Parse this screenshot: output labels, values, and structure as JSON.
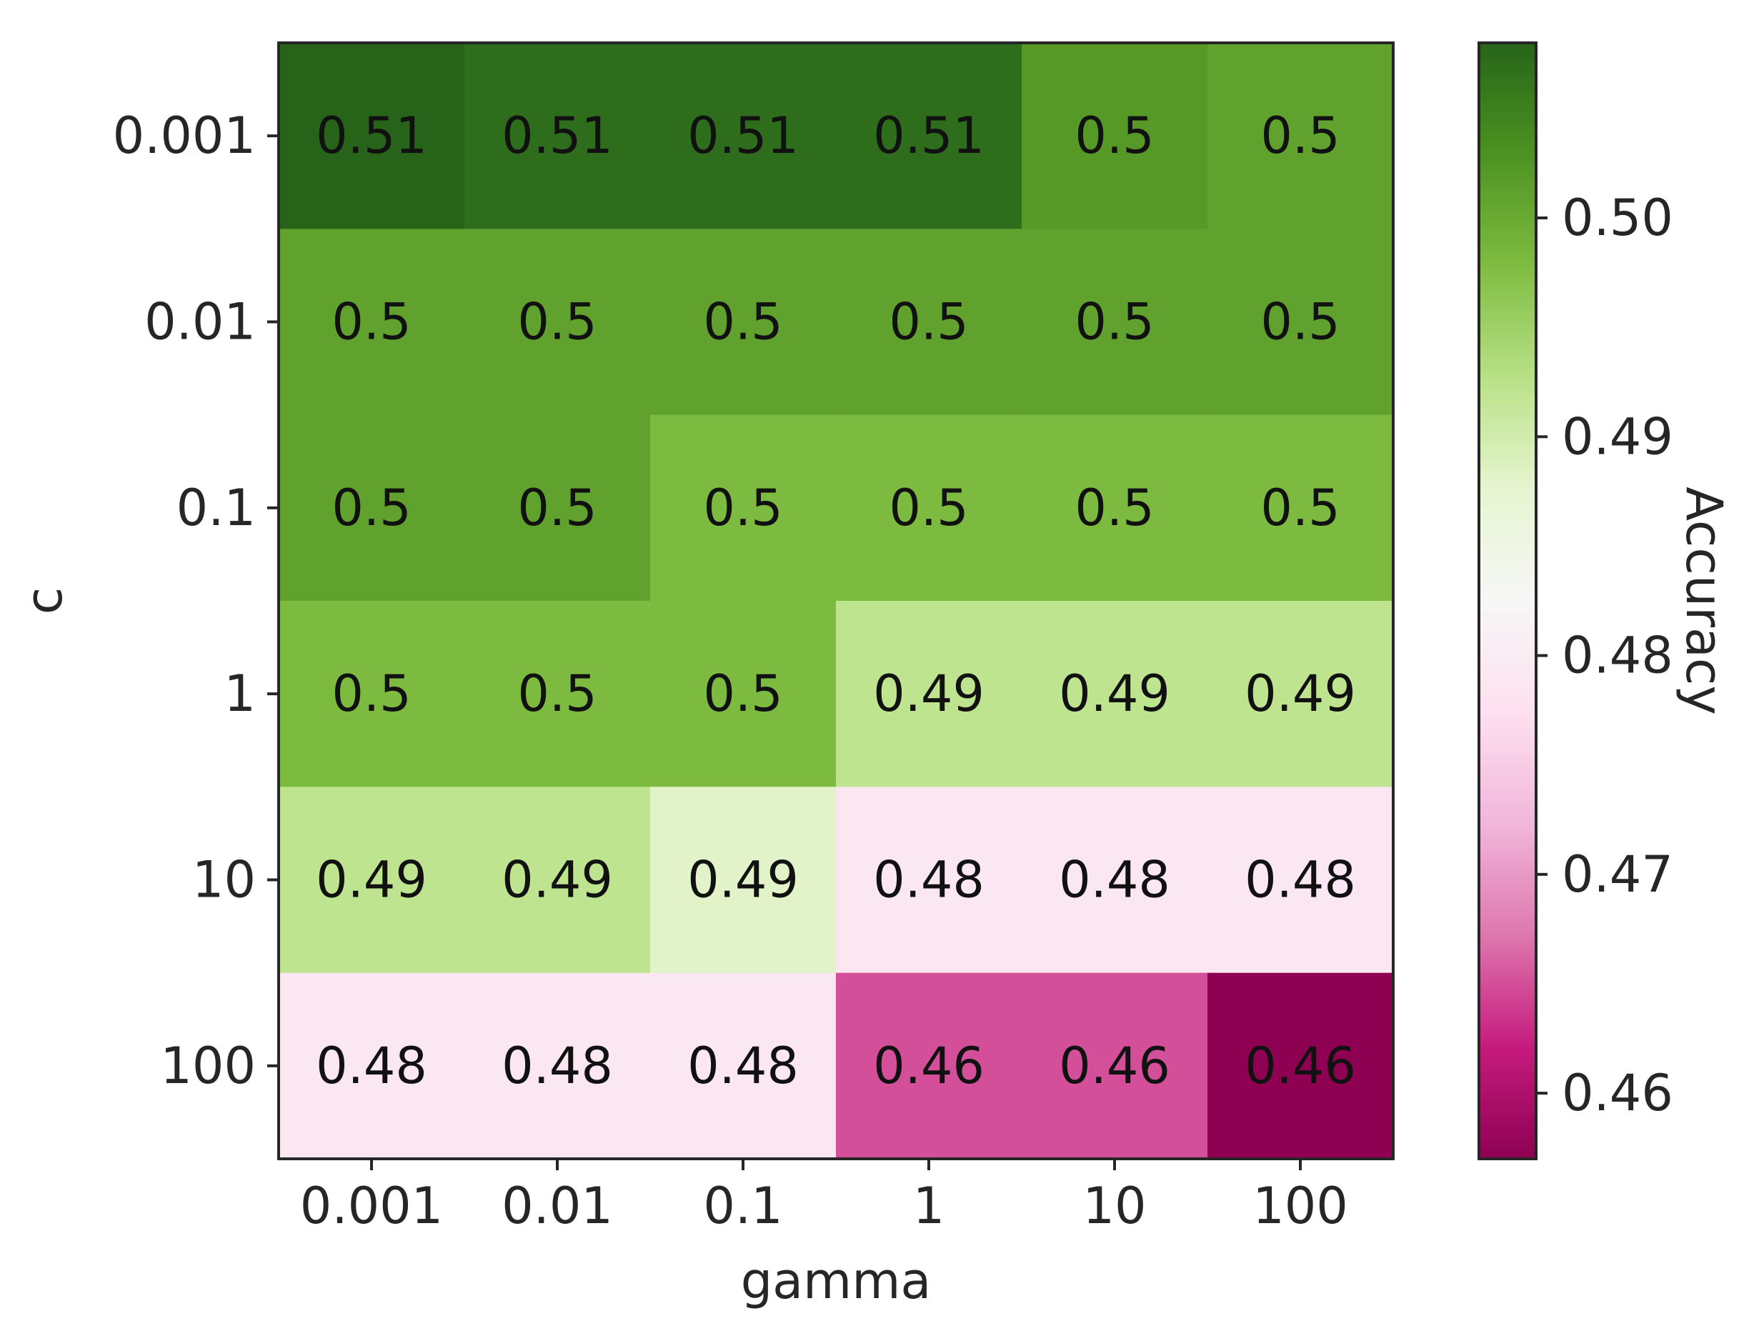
{
  "chart_data": {
    "type": "heatmap",
    "x_categories": [
      "0.001",
      "0.01",
      "0.1",
      "1",
      "10",
      "100"
    ],
    "y_categories": [
      "0.001",
      "0.01",
      "0.1",
      "1",
      "10",
      "100"
    ],
    "xlabel": "gamma",
    "ylabel": "c",
    "colorbar_label": "Accuracy",
    "colormap": "PiYG",
    "vmin": 0.457,
    "vmax": 0.508,
    "colorbar_ticks": [
      "0.46",
      "0.47",
      "0.48",
      "0.49",
      "0.50"
    ],
    "values": [
      [
        0.508,
        0.507,
        0.507,
        0.507,
        0.502,
        0.501
      ],
      [
        0.501,
        0.501,
        0.501,
        0.501,
        0.501,
        0.501
      ],
      [
        0.501,
        0.501,
        0.498,
        0.498,
        0.498,
        0.498
      ],
      [
        0.498,
        0.498,
        0.498,
        0.492,
        0.492,
        0.492
      ],
      [
        0.492,
        0.492,
        0.488,
        0.479,
        0.479,
        0.479
      ],
      [
        0.479,
        0.479,
        0.479,
        0.465,
        0.465,
        0.457
      ]
    ],
    "annotations": [
      [
        "0.51",
        "0.51",
        "0.51",
        "0.51",
        "0.5",
        "0.5"
      ],
      [
        "0.5",
        "0.5",
        "0.5",
        "0.5",
        "0.5",
        "0.5"
      ],
      [
        "0.5",
        "0.5",
        "0.5",
        "0.5",
        "0.5",
        "0.5"
      ],
      [
        "0.5",
        "0.5",
        "0.5",
        "0.49",
        "0.49",
        "0.49"
      ],
      [
        "0.49",
        "0.49",
        "0.49",
        "0.48",
        "0.48",
        "0.48"
      ],
      [
        "0.48",
        "0.48",
        "0.48",
        "0.46",
        "0.46",
        "0.46"
      ]
    ]
  }
}
